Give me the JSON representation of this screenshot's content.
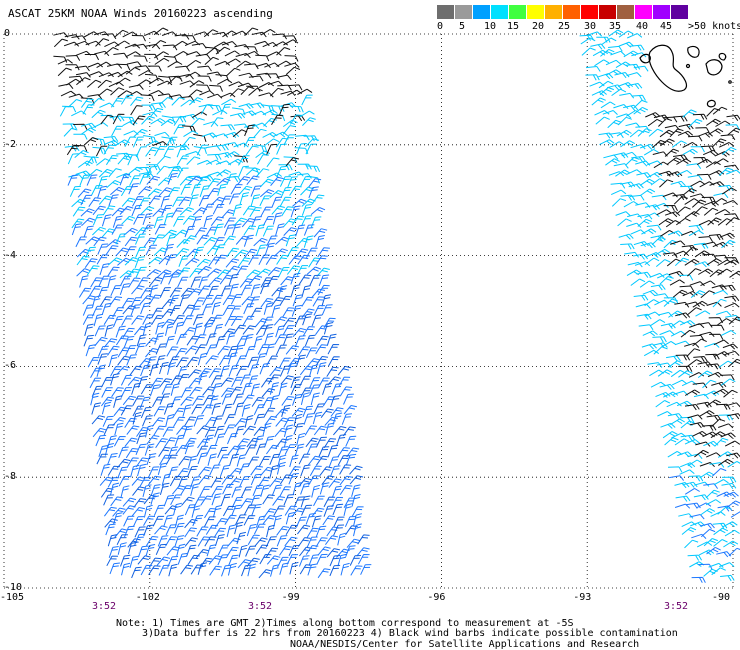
{
  "title": "ASCAT 25KM NOAA Winds 20160223 ascending",
  "colorbar": {
    "colors": [
      "#6e6e6e",
      "#9a9a9a",
      "#00a0ff",
      "#00e0ff",
      "#40ff40",
      "#ffff00",
      "#ffb000",
      "#ff6000",
      "#ff0000",
      "#c80000",
      "#a06040",
      "#ff00ff",
      "#a000ff",
      "#6000a0"
    ],
    "labels": [
      "0",
      "5",
      "10",
      "15",
      "20",
      "25",
      "30",
      "35",
      "40",
      "45",
      ">50 knots"
    ]
  },
  "axes": {
    "y_ticks": [
      "0",
      "-2",
      "-4",
      "-6",
      "-8",
      "-10"
    ],
    "x_ticks": [
      "-105",
      "-102",
      "-99",
      "-96",
      "-93",
      "-90"
    ],
    "lat_range": [
      -10,
      0
    ],
    "lon_range": [
      -105,
      -90
    ],
    "grid": "dotted"
  },
  "time_labels": [
    "3:52",
    "3:52",
    "3:52"
  ],
  "notes": [
    "Note: 1) Times are GMT 2)Times along bottom correspond to measurement at -5S",
    "3)Data buffer is 22 hrs from 20160223 4) Black wind barbs indicate possible contamination",
    "NOAA/NESDIS/Center for Satellite Applications and Research"
  ],
  "swaths": [
    {
      "name": "west-swath",
      "start_lon": -104.0,
      "end_lon": -99.1,
      "bottom_start_lon": -102.8,
      "bottom_end_lon": -97.5
    },
    {
      "name": "east-swath",
      "start_lon": -93.2,
      "end_lon": -90.0,
      "bottom_start_lon": -90.8,
      "bottom_end_lon": -90.0
    }
  ],
  "wind_colors": {
    "contaminated": "#111111",
    "speed_5_10": "#00c8ff",
    "speed_10_15": "#1e78ff",
    "speed_10_15_dark": "#1060e0"
  },
  "land_feature": "Galapagos Islands outline"
}
